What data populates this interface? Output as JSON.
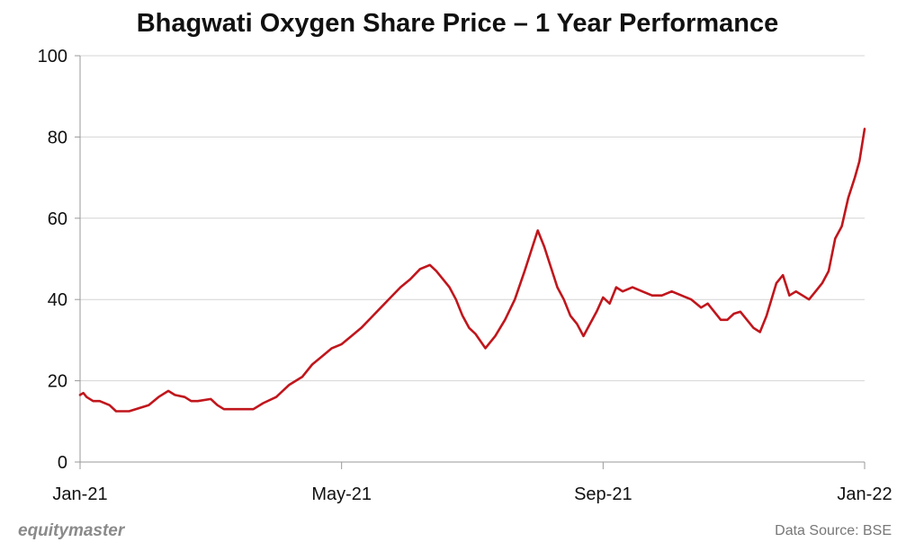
{
  "chart_data": {
    "type": "line",
    "title": "Bhagwati Oxygen Share Price – 1 Year Performance",
    "xlabel": "",
    "ylabel": "",
    "ylim": [
      0,
      100
    ],
    "yticks": [
      0,
      20,
      40,
      60,
      80,
      100
    ],
    "xlim": [
      0,
      12
    ],
    "xticks": [
      {
        "pos": 0,
        "label": "Jan-21"
      },
      {
        "pos": 4,
        "label": "May-21"
      },
      {
        "pos": 8,
        "label": "Sep-21"
      },
      {
        "pos": 12,
        "label": "Jan-22"
      }
    ],
    "grid": true,
    "color": "#c0161c",
    "series": [
      {
        "name": "Share Price",
        "x": [
          0,
          0.05,
          0.1,
          0.2,
          0.3,
          0.45,
          0.55,
          0.6,
          0.75,
          0.85,
          0.95,
          1.05,
          1.2,
          1.35,
          1.45,
          1.6,
          1.7,
          1.8,
          2.0,
          2.1,
          2.2,
          2.35,
          2.45,
          2.55,
          2.65,
          2.8,
          3.0,
          3.2,
          3.4,
          3.55,
          3.7,
          3.85,
          4.0,
          4.15,
          4.3,
          4.45,
          4.6,
          4.75,
          4.9,
          5.05,
          5.2,
          5.35,
          5.45,
          5.55,
          5.65,
          5.75,
          5.85,
          5.95,
          6.05,
          6.2,
          6.35,
          6.5,
          6.65,
          6.8,
          6.9,
          7.0,
          7.1,
          7.2,
          7.3,
          7.4,
          7.5,
          7.6,
          7.7,
          7.8,
          7.9,
          8.0,
          8.1,
          8.2,
          8.3,
          8.45,
          8.6,
          8.75,
          8.9,
          9.05,
          9.2,
          9.35,
          9.5,
          9.6,
          9.7,
          9.8,
          9.9,
          10.0,
          10.1,
          10.2,
          10.3,
          10.4,
          10.5,
          10.65,
          10.75,
          10.85,
          10.95,
          11.05,
          11.15,
          11.25,
          11.35,
          11.45,
          11.55,
          11.65,
          11.75,
          11.85,
          11.92,
          12.0
        ],
        "values": [
          16.5,
          17,
          16,
          15,
          15,
          14,
          12.5,
          12.5,
          12.5,
          13,
          13.5,
          14,
          16,
          17.5,
          16.5,
          16,
          15,
          15,
          15.5,
          14,
          13,
          13,
          13,
          13,
          13,
          14.5,
          16,
          19,
          21,
          24,
          26,
          28,
          29,
          31,
          33,
          35.5,
          38,
          40.5,
          43,
          45,
          47.5,
          48.5,
          47,
          45,
          43,
          40,
          36,
          33,
          31.5,
          28,
          31,
          35,
          40,
          47,
          52,
          57,
          53,
          48,
          43,
          40,
          36,
          34,
          31,
          34,
          37,
          40.5,
          39,
          43,
          42,
          43,
          42,
          41,
          41,
          42,
          41,
          40,
          38,
          39,
          37,
          35,
          35,
          36.5,
          37,
          35,
          33,
          32,
          36,
          44,
          46,
          41,
          42,
          41,
          40,
          42,
          44,
          47,
          55,
          58,
          65,
          70,
          74,
          82
        ]
      }
    ]
  },
  "footer": {
    "brand": "equitymaster",
    "source": "Data Source: BSE"
  }
}
